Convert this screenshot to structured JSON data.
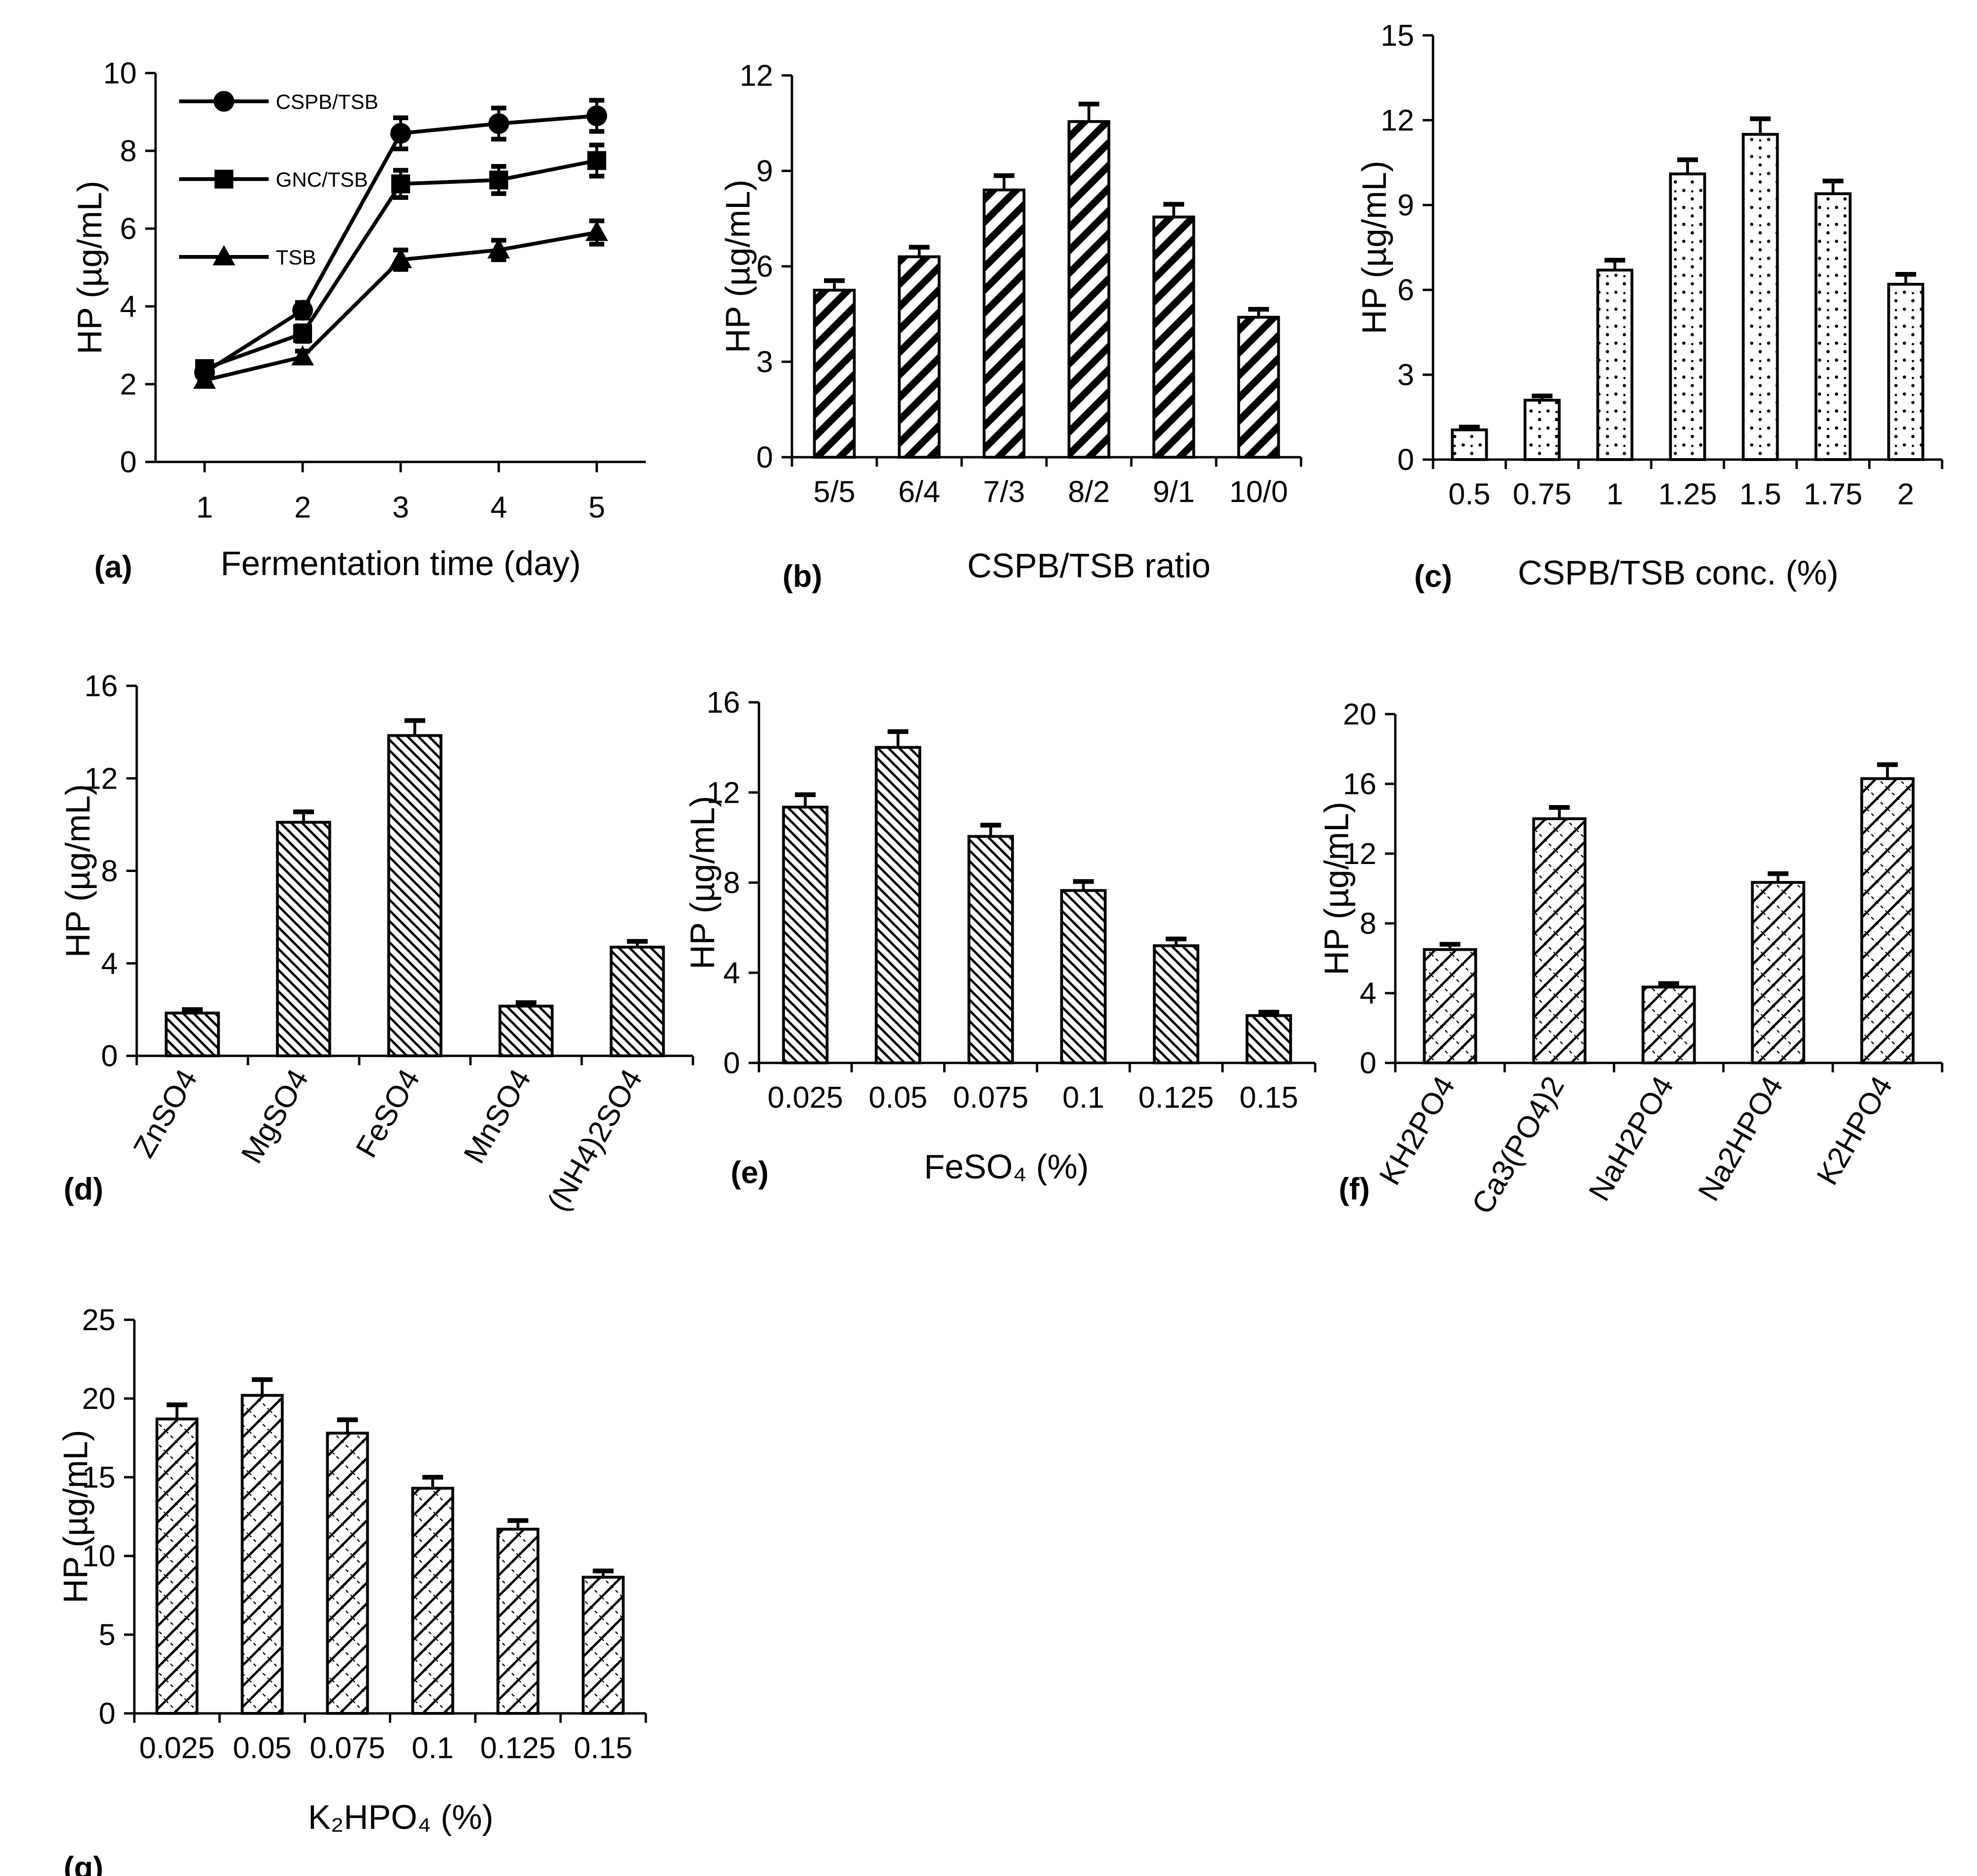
{
  "chart_data": [
    {
      "id": "a",
      "type": "line",
      "panel_label": "(a)",
      "xlabel": "Fermentation time (day)",
      "ylabel": "HP (µg/mL)",
      "categories": [
        "1",
        "2",
        "3",
        "4",
        "5"
      ],
      "ylim": [
        0,
        10
      ],
      "yticks": [
        0,
        2,
        4,
        6,
        8,
        10
      ],
      "series": [
        {
          "name": "CSPB/TSB",
          "marker": "circle",
          "values": [
            2.3,
            3.9,
            8.45,
            8.7,
            8.9
          ],
          "errors": [
            0.15,
            0.2,
            0.4,
            0.4,
            0.4
          ]
        },
        {
          "name": "GNC/TSB",
          "marker": "square",
          "values": [
            2.4,
            3.3,
            7.15,
            7.25,
            7.75
          ],
          "errors": [
            0.15,
            0.2,
            0.35,
            0.35,
            0.4
          ]
        },
        {
          "name": "TSB",
          "marker": "triangle",
          "values": [
            2.1,
            2.7,
            5.2,
            5.45,
            5.9
          ],
          "errors": [
            0.1,
            0.15,
            0.25,
            0.25,
            0.3
          ]
        }
      ]
    },
    {
      "id": "b",
      "type": "bar",
      "panel_label": "(b)",
      "pattern": "hatch-thick",
      "xlabel": "CSPB/TSB ratio",
      "ylabel": "HP (µg/mL)",
      "categories": [
        "5/5",
        "6/4",
        "7/3",
        "8/2",
        "9/1",
        "10/0"
      ],
      "values": [
        5.25,
        6.3,
        8.4,
        10.55,
        7.55,
        4.4
      ],
      "errors": [
        0.3,
        0.3,
        0.45,
        0.55,
        0.4,
        0.25
      ],
      "ylim": [
        0,
        12
      ],
      "yticks": [
        0,
        3,
        6,
        9,
        12
      ]
    },
    {
      "id": "c",
      "type": "bar",
      "panel_label": "(c)",
      "pattern": "dots",
      "xlabel": "CSPB/TSB conc. (%)",
      "ylabel": "HP (µg/mL)",
      "categories": [
        "0.5",
        "0.75",
        "1",
        "1.25",
        "1.5",
        "1.75",
        "2"
      ],
      "values": [
        1.05,
        2.1,
        6.7,
        10.1,
        11.5,
        9.4,
        6.2
      ],
      "errors": [
        0.1,
        0.15,
        0.35,
        0.5,
        0.55,
        0.45,
        0.35
      ],
      "ylim": [
        0,
        15
      ],
      "yticks": [
        0,
        3,
        6,
        9,
        12,
        15
      ]
    },
    {
      "id": "d",
      "type": "bar",
      "panel_label": "(d)",
      "pattern": "hatch-fine",
      "xlabel": "",
      "ylabel": "HP (µg/mL)",
      "categories": [
        "ZnSO4",
        "MgSO4",
        "FeSO4",
        "MnSO4",
        "(NH4)2SO4"
      ],
      "values": [
        1.85,
        10.1,
        13.85,
        2.15,
        4.7
      ],
      "errors": [
        0.15,
        0.45,
        0.65,
        0.15,
        0.25
      ],
      "ylim": [
        0,
        16
      ],
      "yticks": [
        0,
        4,
        8,
        12,
        16
      ],
      "rotate_labels": true
    },
    {
      "id": "e",
      "type": "bar",
      "panel_label": "(e)",
      "pattern": "hatch-fine",
      "xlabel": "FeSO₄ (%)",
      "ylabel": "HP (µg/mL)",
      "categories": [
        "0.025",
        "0.05",
        "0.075",
        "0.1",
        "0.125",
        "0.15"
      ],
      "values": [
        11.35,
        14.0,
        10.05,
        7.65,
        5.2,
        2.1
      ],
      "errors": [
        0.55,
        0.7,
        0.5,
        0.4,
        0.3,
        0.15
      ],
      "ylim": [
        0,
        16
      ],
      "yticks": [
        0,
        4,
        8,
        12,
        16
      ]
    },
    {
      "id": "f",
      "type": "bar",
      "panel_label": "(f)",
      "pattern": "crosshatch",
      "xlabel": "",
      "ylabel": "HP (µg/mL)",
      "categories": [
        "KH2PO4",
        "Ca3(PO4)2",
        "NaH2PO4",
        "Na2HPO4",
        "K2HPO4"
      ],
      "values": [
        6.5,
        14.0,
        4.35,
        10.35,
        16.3
      ],
      "errors": [
        0.3,
        0.65,
        0.2,
        0.5,
        0.8
      ],
      "ylim": [
        0,
        20
      ],
      "yticks": [
        0,
        4,
        8,
        12,
        16,
        20
      ],
      "rotate_labels": true
    },
    {
      "id": "g",
      "type": "bar",
      "panel_label": "(g)",
      "pattern": "crosshatch",
      "xlabel": "K₂HPO₄ (%)",
      "ylabel": "HP (µg/mL)",
      "categories": [
        "0.025",
        "0.05",
        "0.075",
        "0.1",
        "0.125",
        "0.15"
      ],
      "values": [
        18.7,
        20.2,
        17.8,
        14.3,
        11.7,
        8.65
      ],
      "errors": [
        0.9,
        1.0,
        0.85,
        0.7,
        0.55,
        0.4
      ],
      "ylim": [
        0,
        25
      ],
      "yticks": [
        0,
        5,
        10,
        15,
        20,
        25
      ]
    }
  ]
}
